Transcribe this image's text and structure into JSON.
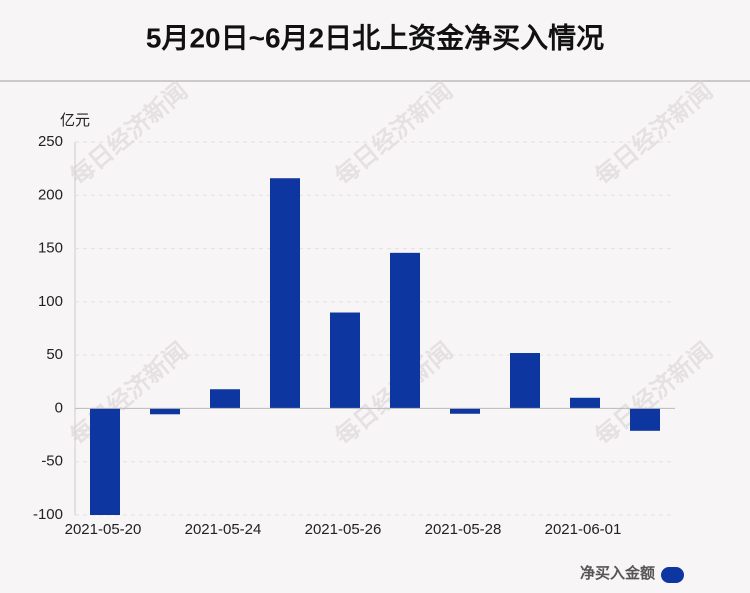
{
  "chart_data": {
    "type": "bar",
    "title": "5月20日~6月2日北上资金净买入情况",
    "y_label": "亿元",
    "watermark": "每日经济新闻",
    "categories": [
      "2021-05-20",
      null,
      "2021-05-24",
      null,
      "2021-05-26",
      null,
      "2021-05-28",
      null,
      "2021-06-01",
      null
    ],
    "series": [
      {
        "name": "净买入金额",
        "color": "#0d36a0",
        "values": [
          -100,
          -5.5,
          18,
          216,
          90,
          146,
          -5,
          52,
          10,
          -21
        ]
      }
    ],
    "ylim": [
      -100,
      250
    ],
    "yticks": [
      -100,
      -50,
      0,
      50,
      100,
      150,
      200,
      250
    ],
    "grid": true
  }
}
